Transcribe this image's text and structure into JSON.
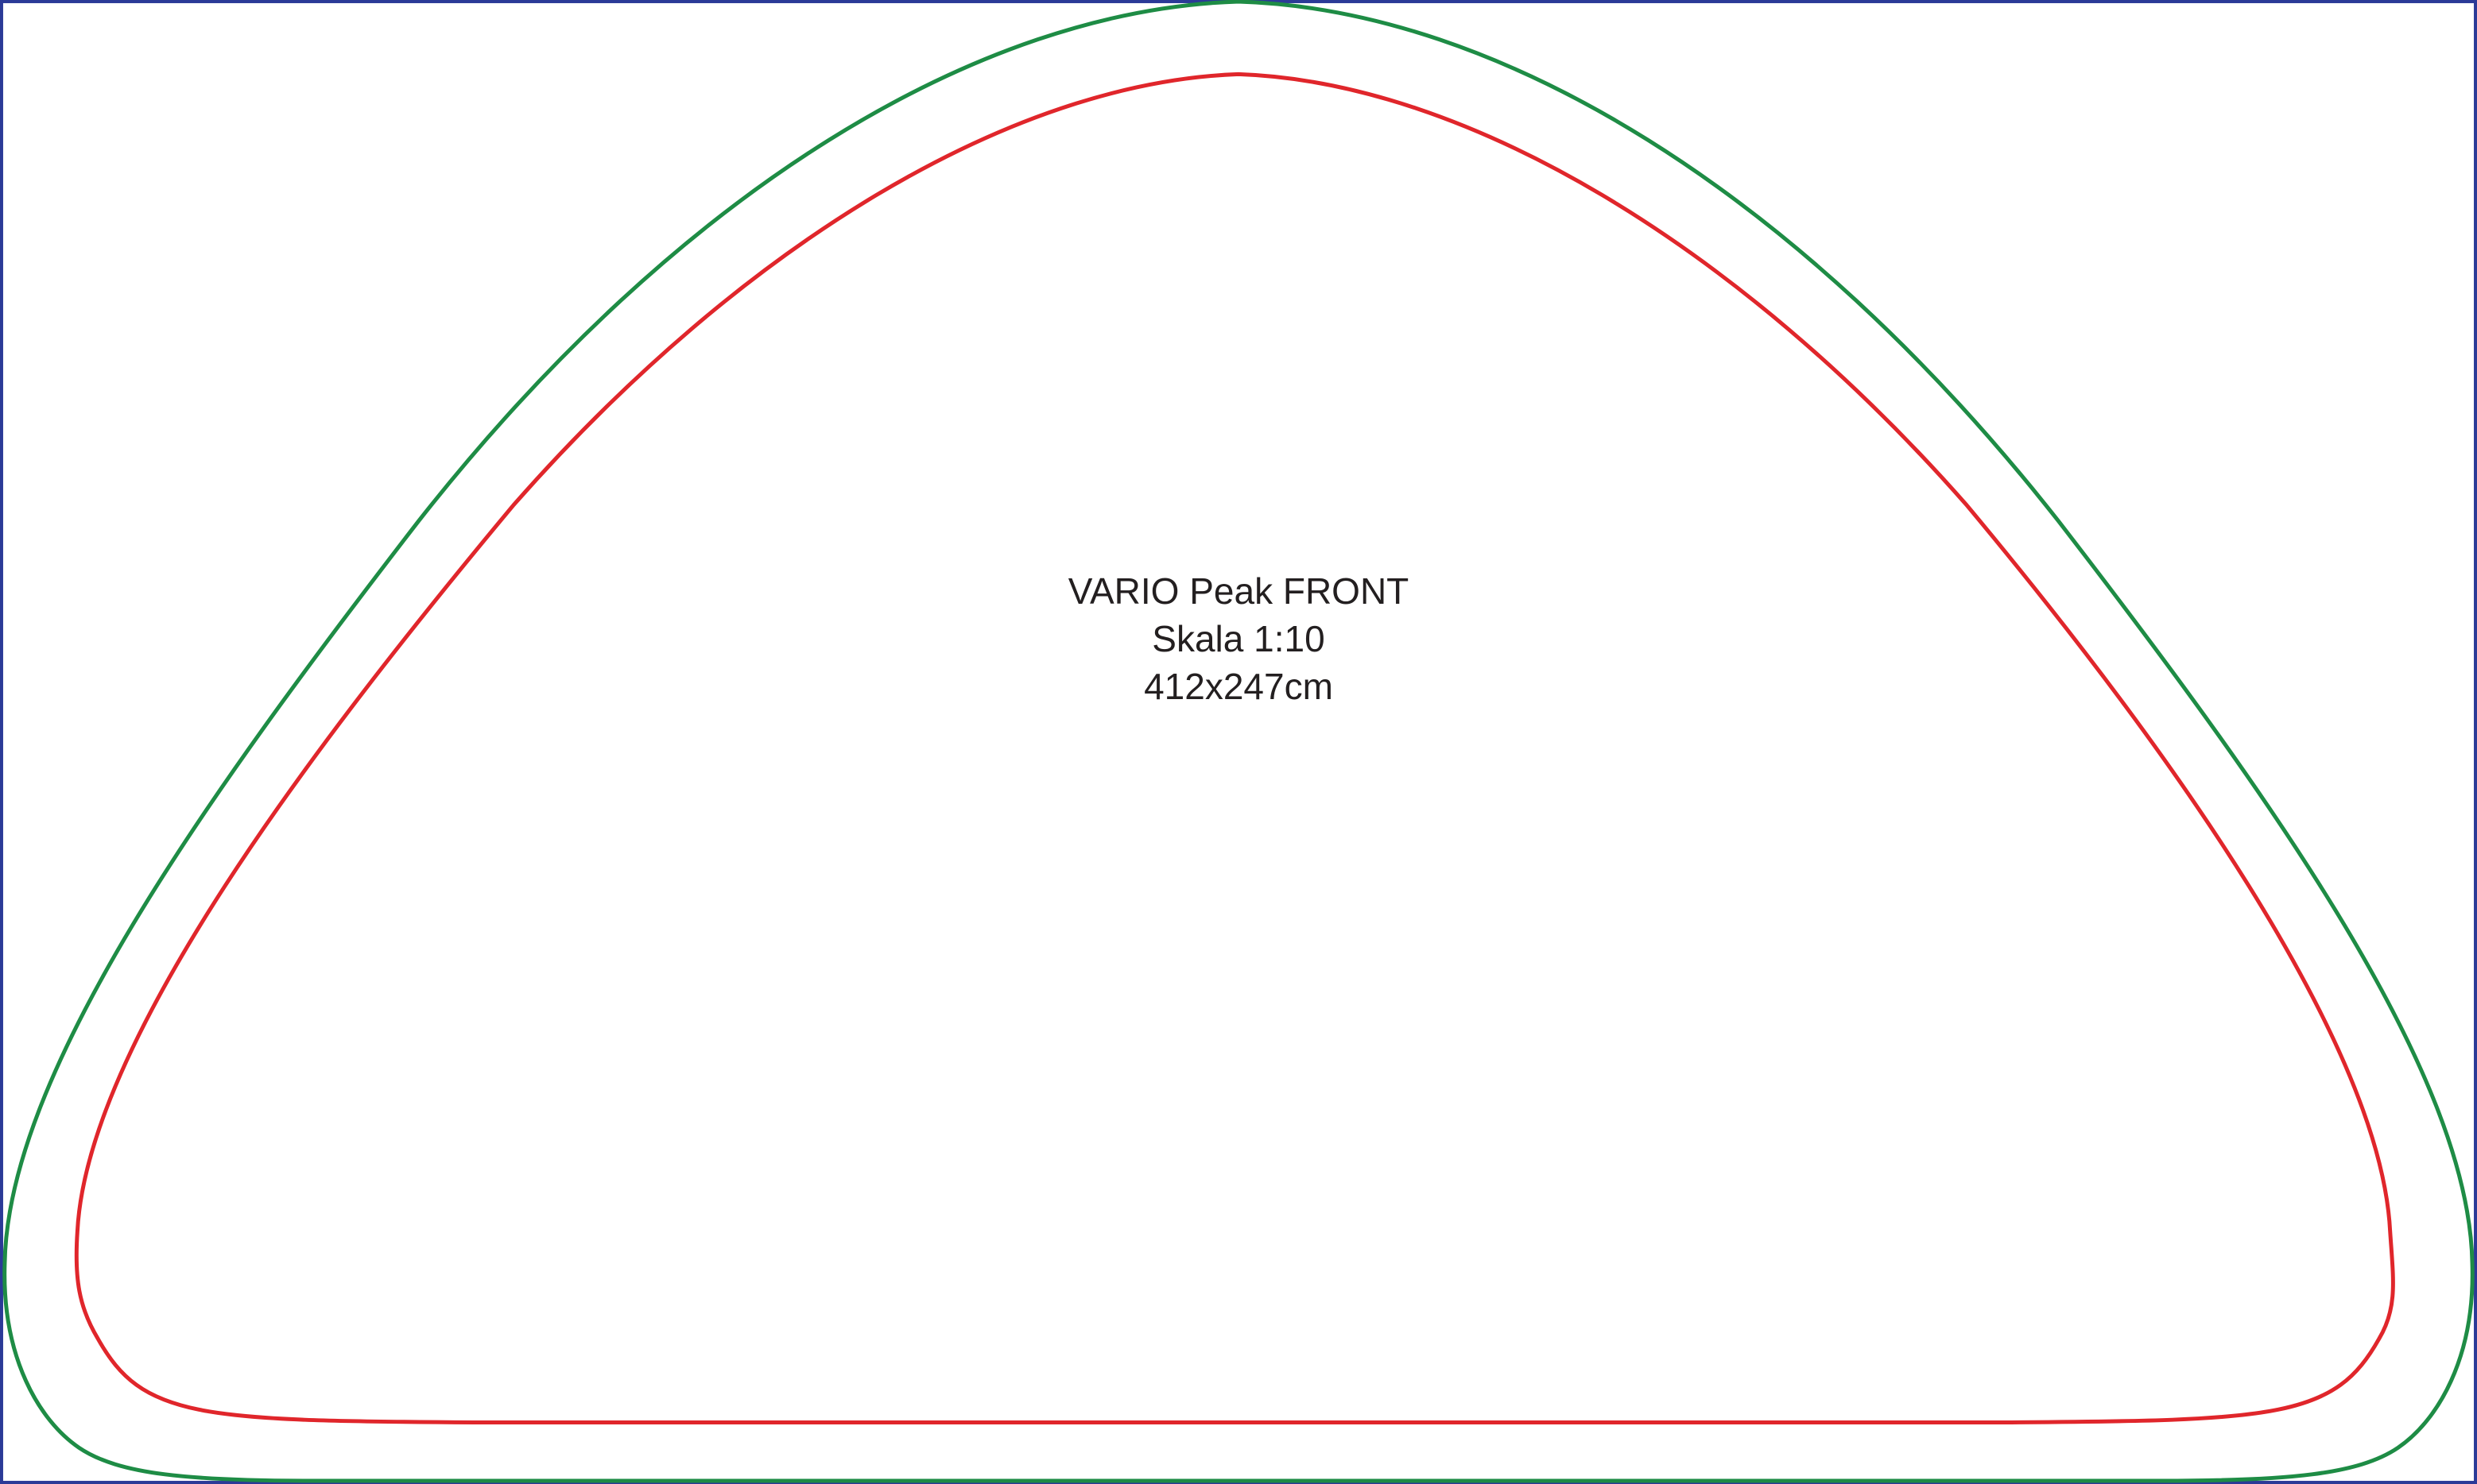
{
  "drawing": {
    "label_lines": [
      "VARIO Peak FRONT",
      "Skala 1:10",
      "412x247cm"
    ],
    "colors": {
      "frame": "#2b3a97",
      "outer_outline": "#1e8c45",
      "inner_outline": "#e0262b",
      "text": "#231f20",
      "background": "#ffffff"
    }
  }
}
